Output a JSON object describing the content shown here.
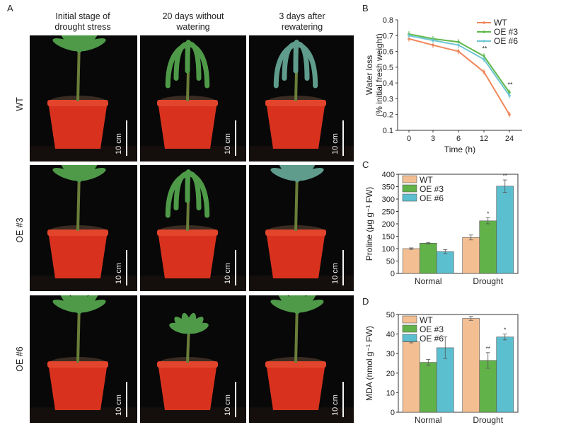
{
  "panels": {
    "A": "A",
    "B": "B",
    "C": "C",
    "D": "D"
  },
  "photo_grid": {
    "column_headers": [
      [
        "Initial stage of",
        "drought stress"
      ],
      [
        "20 days without",
        "watering"
      ],
      [
        "3 days after",
        "rewatering"
      ]
    ],
    "row_labels": [
      "WT",
      "OE #3",
      "OE #6"
    ],
    "scale_bar_label": "10 cm"
  },
  "colors": {
    "wt": "#f0875a",
    "oe3": "#5fb848",
    "oe6": "#6fc6d4",
    "bar_wt": "#f3bf92",
    "bar_oe3": "#62b24a",
    "bar_oe6": "#5cbfcf",
    "pot": "#d8321f",
    "leaf": "#4e9a48"
  },
  "chart_data": [
    {
      "panel": "B",
      "type": "line",
      "x": [
        0,
        3,
        6,
        12,
        24
      ],
      "xlabel": "Time (h)",
      "ylabel": [
        "Water loss",
        "(% initial fresh weight)"
      ],
      "ylim": [
        0.1,
        0.8
      ],
      "yticks": [
        0.1,
        0.2,
        0.3,
        0.4,
        0.5,
        0.6,
        0.7,
        0.8
      ],
      "legend_position": "top-right",
      "series": [
        {
          "name": "WT",
          "values": [
            0.68,
            0.64,
            0.6,
            0.47,
            0.2
          ]
        },
        {
          "name": "OE #3",
          "values": [
            0.71,
            0.68,
            0.66,
            0.57,
            0.34
          ]
        },
        {
          "name": "OE #6",
          "values": [
            0.7,
            0.67,
            0.64,
            0.55,
            0.32
          ]
        }
      ],
      "annotations": [
        {
          "x": 12,
          "text": "**"
        },
        {
          "x": 24,
          "text": "**"
        }
      ]
    },
    {
      "panel": "C",
      "type": "bar",
      "categories": [
        "Normal",
        "Drought"
      ],
      "ylabel": "Proline (μg g⁻¹ FW)",
      "ylim": [
        0,
        400
      ],
      "yticks": [
        0,
        50,
        100,
        150,
        200,
        250,
        300,
        350,
        400
      ],
      "legend_position": "top-left",
      "series": [
        {
          "name": "WT",
          "values": [
            100,
            145
          ],
          "errors": [
            3,
            10
          ]
        },
        {
          "name": "OE #3",
          "values": [
            122,
            212
          ],
          "errors": [
            3,
            12
          ],
          "sig": [
            "",
            "*"
          ]
        },
        {
          "name": "OE #6",
          "values": [
            88,
            352
          ],
          "errors": [
            8,
            25
          ],
          "sig": [
            "",
            "**"
          ]
        }
      ]
    },
    {
      "panel": "D",
      "type": "bar",
      "categories": [
        "Normal",
        "Drought"
      ],
      "ylabel": "MDA (nmol g⁻¹ FW)",
      "ylim": [
        0,
        50
      ],
      "yticks": [
        0,
        10,
        20,
        30,
        40,
        50
      ],
      "legend_position": "top-left",
      "series": [
        {
          "name": "WT",
          "values": [
            36,
            48
          ],
          "errors": [
            0.5,
            1
          ]
        },
        {
          "name": "OE #3",
          "values": [
            25.5,
            26.5
          ],
          "errors": [
            1.5,
            4
          ],
          "sig": [
            "",
            "**"
          ]
        },
        {
          "name": "OE #6",
          "values": [
            33,
            38.5
          ],
          "errors": [
            5.5,
            1.5
          ],
          "sig": [
            "",
            "*"
          ]
        }
      ]
    }
  ]
}
